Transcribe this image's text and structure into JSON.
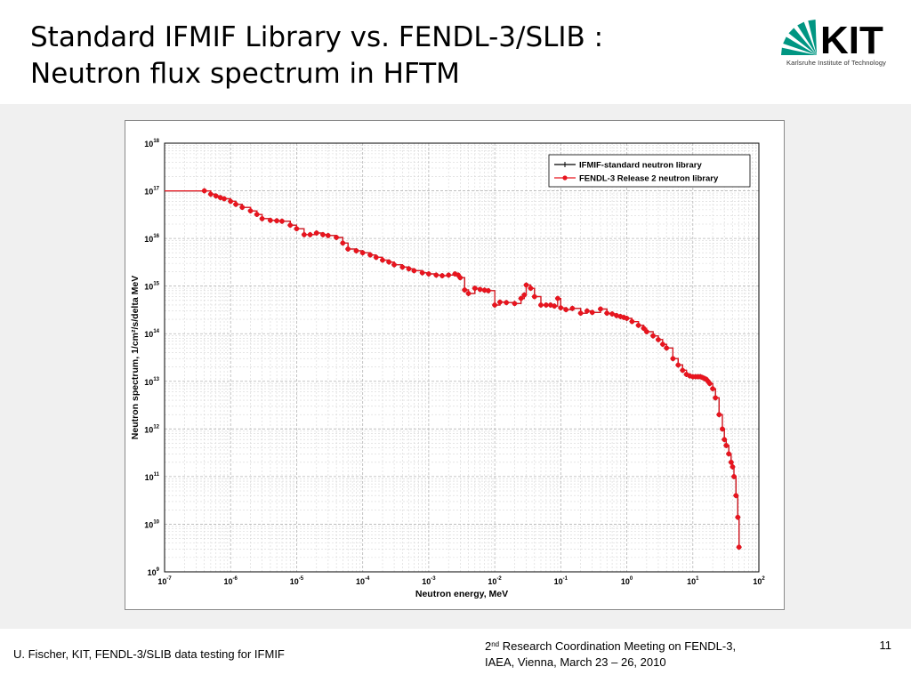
{
  "slide": {
    "title_line1": "Standard IFMIF Library vs. FENDL-3/SLIB :",
    "title_line2": "Neutron flux spectrum in HFTM",
    "logo_text": "Karlsruhe Institute of Technology",
    "logo_color": "#009682",
    "footer_left": "U. Fischer, KIT, FENDL-3/SLIB data testing for IFMIF",
    "footer_mid_pre": "2",
    "footer_mid_sup": "nd",
    "footer_mid_line1_rest": " Research Coordination Meeting on FENDL-3,",
    "footer_mid_line2": "IAEA, Vienna, March 23 – 26, 2010",
    "page_number": "11"
  },
  "chart_data": {
    "type": "line",
    "xlabel": "Neutron energy, MeV",
    "ylabel": "Neutron spectrum, 1/cm²/s/delta MeV",
    "xscale": "log",
    "yscale": "log",
    "xlim": [
      1e-07,
      100
    ],
    "ylim": [
      1000000000.0,
      1e+18
    ],
    "x_ticks": [
      "10-7",
      "10-6",
      "10-5",
      "10-4",
      "10-3",
      "10-2",
      "10-1",
      "100",
      "101",
      "102"
    ],
    "y_ticks": [
      "109",
      "1010",
      "1011",
      "1012",
      "1013",
      "1014",
      "1015",
      "1016",
      "1017",
      "1018"
    ],
    "grid": true,
    "legend_position": "top-right",
    "series": [
      {
        "name": "IFMIF-standard neutron library",
        "color": "#000000",
        "marker": "plus",
        "x": [
          1e-07,
          4e-07,
          5e-07,
          6e-07,
          7e-07,
          8e-07,
          1e-06,
          1.2e-06,
          1.5e-06,
          2e-06,
          2.5e-06,
          3e-06,
          4e-06,
          5e-06,
          6e-06,
          8e-06,
          1e-05,
          1.3e-05,
          1.6e-05,
          2e-05,
          2.5e-05,
          3e-05,
          4e-05,
          5e-05,
          6e-05,
          8e-05,
          0.0001,
          0.00013,
          0.00016,
          0.0002,
          0.00025,
          0.0003,
          0.0004,
          0.0005,
          0.0006,
          0.0008,
          0.001,
          0.0013,
          0.0016,
          0.002,
          0.0025,
          0.0028,
          0.003,
          0.0035,
          0.004,
          0.005,
          0.006,
          0.007,
          0.008,
          0.01,
          0.012,
          0.015,
          0.02,
          0.025,
          0.028,
          0.03,
          0.035,
          0.04,
          0.05,
          0.06,
          0.07,
          0.08,
          0.09,
          0.1,
          0.12,
          0.15,
          0.2,
          0.25,
          0.3,
          0.4,
          0.5,
          0.6,
          0.7,
          0.8,
          0.9,
          1,
          1.2,
          1.5,
          1.8,
          2,
          2.5,
          3,
          3.5,
          4,
          5,
          6,
          7,
          8,
          9,
          10,
          11,
          12,
          13,
          14,
          15,
          16,
          17,
          18,
          20,
          22,
          25,
          28,
          30,
          32,
          35,
          38,
          40,
          42,
          45,
          48,
          50
        ],
        "y": [
          1e+17,
          1e+17,
          8.5e+16,
          7.8e+16,
          7.2e+16,
          6.8e+16,
          6e+16,
          5.2e+16,
          4.5e+16,
          3.8e+16,
          3.2e+16,
          2.6e+16,
          2.4e+16,
          2.35e+16,
          2.3e+16,
          1.9e+16,
          1.6e+16,
          1.2e+16,
          1.2e+16,
          1.3e+16,
          1.2e+16,
          1.15e+16,
          1.05e+16,
          8000000000000000.0,
          6000000000000000.0,
          5500000000000000.0,
          5000000000000000.0,
          4500000000000000.0,
          4000000000000000.0,
          3500000000000000.0,
          3200000000000000.0,
          2800000000000000.0,
          2500000000000000.0,
          2300000000000000.0,
          2100000000000000.0,
          1900000000000000.0,
          1800000000000000.0,
          1700000000000000.0,
          1650000000000000.0,
          1700000000000000.0,
          1800000000000000.0,
          1700000000000000.0,
          1500000000000000.0,
          830000000000000.0,
          700000000000000.0,
          900000000000000.0,
          850000000000000.0,
          820000000000000.0,
          800000000000000.0,
          400000000000000.0,
          460000000000000.0,
          450000000000000.0,
          430000000000000.0,
          550000000000000.0,
          650000000000000.0,
          1050000000000000.0,
          900000000000000.0,
          600000000000000.0,
          400000000000000.0,
          400000000000000.0,
          400000000000000.0,
          380000000000000.0,
          550000000000000.0,
          350000000000000.0,
          320000000000000.0,
          340000000000000.0,
          270000000000000.0,
          300000000000000.0,
          280000000000000.0,
          330000000000000.0,
          270000000000000.0,
          260000000000000.0,
          240000000000000.0,
          230000000000000.0,
          220000000000000.0,
          210000000000000.0,
          180000000000000.0,
          150000000000000.0,
          130000000000000.0,
          110000000000000.0,
          90000000000000.0,
          75000000000000.0,
          60000000000000.0,
          50000000000000.0,
          30000000000000.0,
          22000000000000.0,
          17000000000000.0,
          14000000000000.0,
          13000000000000.0,
          12500000000000.0,
          12500000000000.0,
          12500000000000.0,
          12500000000000.0,
          12000000000000.0,
          11500000000000.0,
          11000000000000.0,
          10000000000000.0,
          9000000000000.0,
          7000000000000.0,
          4500000000000.0,
          2000000000000.0,
          1000000000000.0,
          600000000000.0,
          450000000000.0,
          300000000000.0,
          200000000000.0,
          160000000000.0,
          100000000000.0,
          40000000000.0,
          14000000000.0,
          3300000000.0
        ]
      },
      {
        "name": "FENDL-3 Release 2 neutron library",
        "color": "#e8141e",
        "marker": "circle",
        "x": [
          1e-07,
          4e-07,
          5e-07,
          6e-07,
          7e-07,
          8e-07,
          1e-06,
          1.2e-06,
          1.5e-06,
          2e-06,
          2.5e-06,
          3e-06,
          4e-06,
          5e-06,
          6e-06,
          8e-06,
          1e-05,
          1.3e-05,
          1.6e-05,
          2e-05,
          2.5e-05,
          3e-05,
          4e-05,
          5e-05,
          6e-05,
          8e-05,
          0.0001,
          0.00013,
          0.00016,
          0.0002,
          0.00025,
          0.0003,
          0.0004,
          0.0005,
          0.0006,
          0.0008,
          0.001,
          0.0013,
          0.0016,
          0.002,
          0.0025,
          0.0028,
          0.003,
          0.0035,
          0.004,
          0.005,
          0.006,
          0.007,
          0.008,
          0.01,
          0.012,
          0.015,
          0.02,
          0.025,
          0.028,
          0.03,
          0.035,
          0.04,
          0.05,
          0.06,
          0.07,
          0.08,
          0.09,
          0.1,
          0.12,
          0.15,
          0.2,
          0.25,
          0.3,
          0.4,
          0.5,
          0.6,
          0.7,
          0.8,
          0.9,
          1,
          1.2,
          1.5,
          1.8,
          2,
          2.5,
          3,
          3.5,
          4,
          5,
          6,
          7,
          8,
          9,
          10,
          11,
          12,
          13,
          14,
          15,
          16,
          17,
          18,
          20,
          22,
          25,
          28,
          30,
          32,
          35,
          38,
          40,
          42,
          45,
          48,
          50
        ],
        "y": [
          1e+17,
          1e+17,
          8.5e+16,
          7.8e+16,
          7.2e+16,
          6.8e+16,
          6e+16,
          5.2e+16,
          4.5e+16,
          3.8e+16,
          3.2e+16,
          2.6e+16,
          2.4e+16,
          2.35e+16,
          2.3e+16,
          1.9e+16,
          1.6e+16,
          1.2e+16,
          1.2e+16,
          1.3e+16,
          1.2e+16,
          1.15e+16,
          1.05e+16,
          8000000000000000.0,
          6000000000000000.0,
          5500000000000000.0,
          5000000000000000.0,
          4500000000000000.0,
          4000000000000000.0,
          3500000000000000.0,
          3200000000000000.0,
          2800000000000000.0,
          2500000000000000.0,
          2300000000000000.0,
          2100000000000000.0,
          1900000000000000.0,
          1800000000000000.0,
          1700000000000000.0,
          1650000000000000.0,
          1700000000000000.0,
          1800000000000000.0,
          1700000000000000.0,
          1500000000000000.0,
          830000000000000.0,
          700000000000000.0,
          900000000000000.0,
          850000000000000.0,
          820000000000000.0,
          800000000000000.0,
          400000000000000.0,
          460000000000000.0,
          450000000000000.0,
          430000000000000.0,
          550000000000000.0,
          650000000000000.0,
          1050000000000000.0,
          900000000000000.0,
          600000000000000.0,
          400000000000000.0,
          400000000000000.0,
          400000000000000.0,
          380000000000000.0,
          550000000000000.0,
          350000000000000.0,
          320000000000000.0,
          340000000000000.0,
          270000000000000.0,
          300000000000000.0,
          280000000000000.0,
          330000000000000.0,
          270000000000000.0,
          260000000000000.0,
          240000000000000.0,
          230000000000000.0,
          220000000000000.0,
          210000000000000.0,
          180000000000000.0,
          150000000000000.0,
          130000000000000.0,
          110000000000000.0,
          90000000000000.0,
          75000000000000.0,
          60000000000000.0,
          50000000000000.0,
          30000000000000.0,
          22000000000000.0,
          17000000000000.0,
          14000000000000.0,
          13000000000000.0,
          12500000000000.0,
          12500000000000.0,
          12500000000000.0,
          12500000000000.0,
          12000000000000.0,
          11500000000000.0,
          11000000000000.0,
          10000000000000.0,
          9000000000000.0,
          7000000000000.0,
          4500000000000.0,
          2000000000000.0,
          1000000000000.0,
          600000000000.0,
          450000000000.0,
          300000000000.0,
          200000000000.0,
          160000000000.0,
          100000000000.0,
          40000000000.0,
          14000000000.0,
          3300000000.0
        ]
      }
    ]
  }
}
